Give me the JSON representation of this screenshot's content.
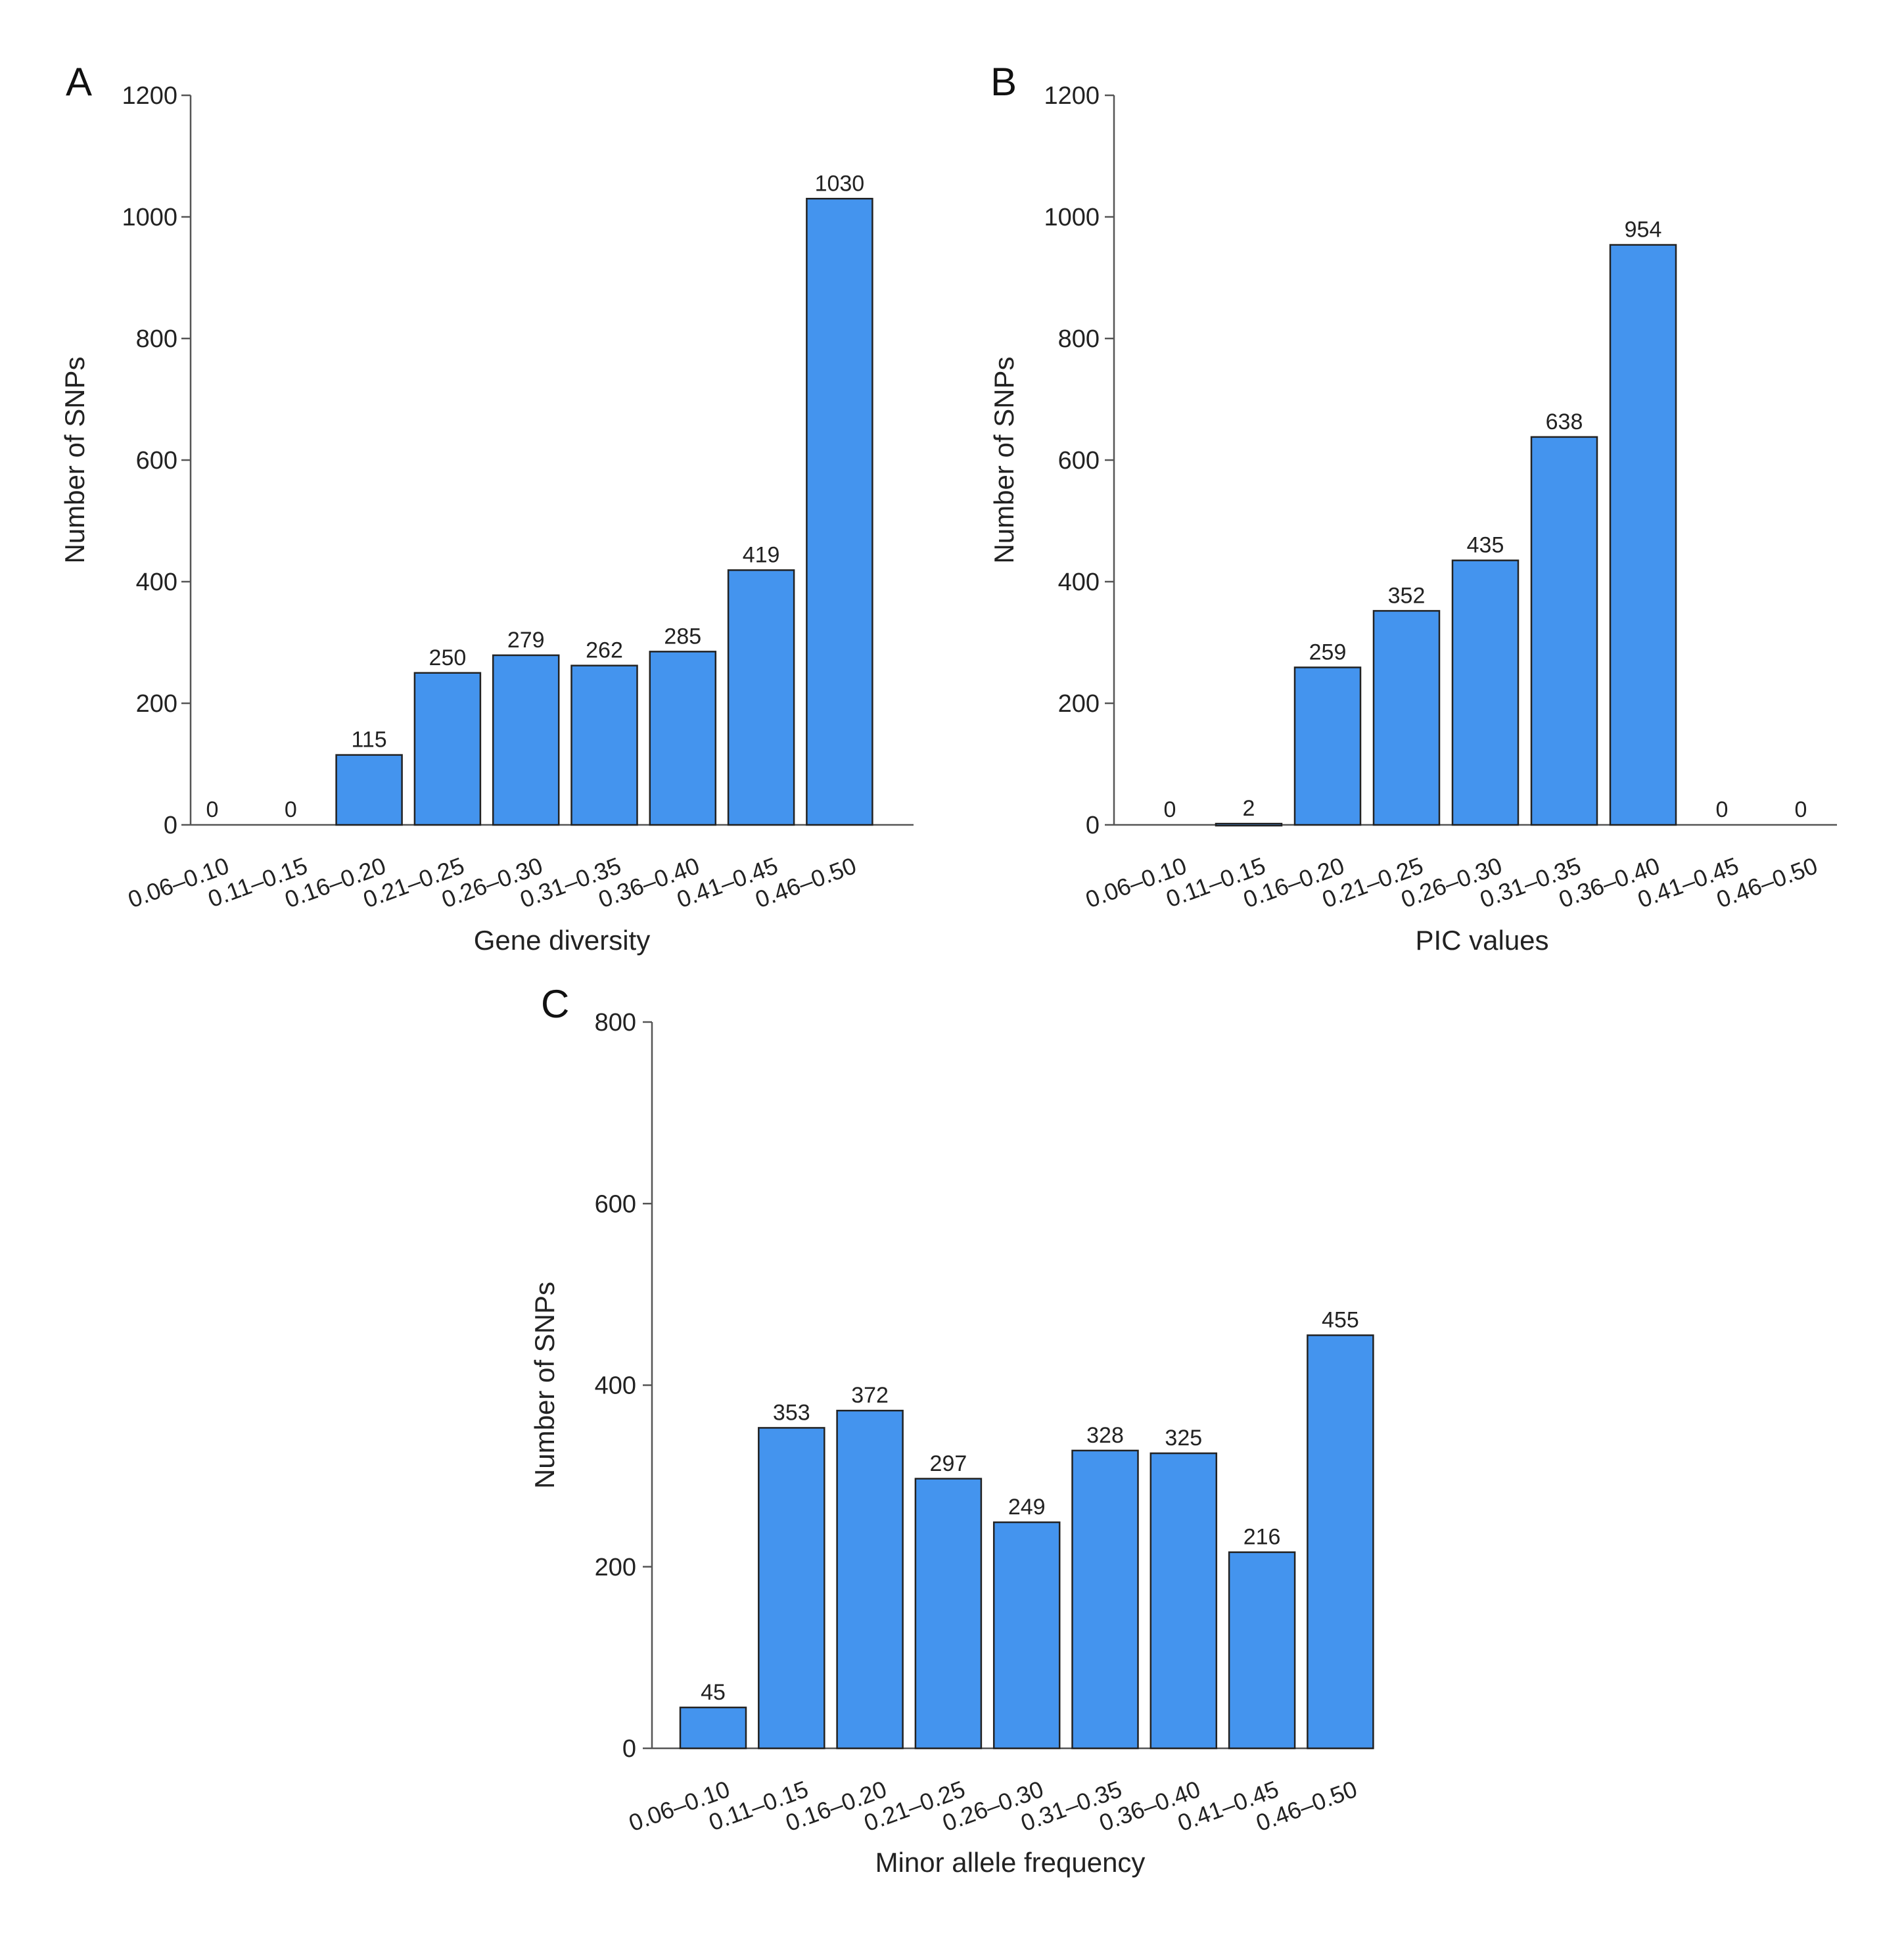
{
  "figure": {
    "bar_color": "#4494EE",
    "bar_edge_color": "#222222"
  },
  "chart_data": [
    {
      "panel": "A",
      "type": "bar",
      "categories": [
        "0.06–0.10",
        "0.11–0.15",
        "0.16–0.20",
        "0.21–0.25",
        "0.26–0.30",
        "0.31–0.35",
        "0.36–0.40",
        "0.41–0.45",
        "0.46–0.50"
      ],
      "values": [
        0,
        0,
        115,
        250,
        279,
        262,
        285,
        419,
        1030
      ],
      "value_labels": [
        "0",
        "0",
        "115",
        "250",
        "279",
        "262",
        "285",
        "419",
        "1030"
      ],
      "xlabel": "Gene diversity",
      "ylabel": "Number of SNPs",
      "ylim": [
        0,
        1200
      ],
      "yticks": [
        0,
        200,
        400,
        600,
        800,
        1000,
        1200
      ],
      "ytick_labels": [
        "0",
        "200",
        "400",
        "600",
        "800",
        "1000",
        "1200"
      ],
      "grid": false
    },
    {
      "panel": "B",
      "type": "bar",
      "categories": [
        "0.06–0.10",
        "0.11–0.15",
        "0.16–0.20",
        "0.21–0.25",
        "0.26–0.30",
        "0.31–0.35",
        "0.36–0.40",
        "0.41–0.45",
        "0.46–0.50"
      ],
      "values": [
        0,
        2,
        259,
        352,
        435,
        638,
        954,
        0,
        0
      ],
      "value_labels": [
        "0",
        "2",
        "259",
        "352",
        "435",
        "638",
        "954",
        "0",
        "0"
      ],
      "xlabel": "PIC values",
      "ylabel": "Number of SNPs",
      "ylim": [
        0,
        1200
      ],
      "yticks": [
        0,
        200,
        400,
        600,
        800,
        1000,
        1200
      ],
      "ytick_labels": [
        "0",
        "200",
        "400",
        "600",
        "800",
        "1000",
        "1200"
      ],
      "grid": false
    },
    {
      "panel": "C",
      "type": "bar",
      "categories": [
        "0.06–0.10",
        "0.11–0.15",
        "0.16–0.20",
        "0.21–0.25",
        "0.26–0.30",
        "0.31–0.35",
        "0.36–0.40",
        "0.41–0.45",
        "0.46–0.50"
      ],
      "values": [
        45,
        353,
        372,
        297,
        249,
        328,
        325,
        216,
        455
      ],
      "value_labels": [
        "45",
        "353",
        "372",
        "297",
        "249",
        "328",
        "325",
        "216",
        "455"
      ],
      "xlabel": "Minor allele frequency",
      "ylabel": "Number of SNPs",
      "ylim": [
        0,
        800
      ],
      "yticks": [
        0,
        200,
        400,
        600,
        800
      ],
      "ytick_labels": [
        "0",
        "200",
        "400",
        "600",
        "800"
      ],
      "grid": false
    }
  ]
}
